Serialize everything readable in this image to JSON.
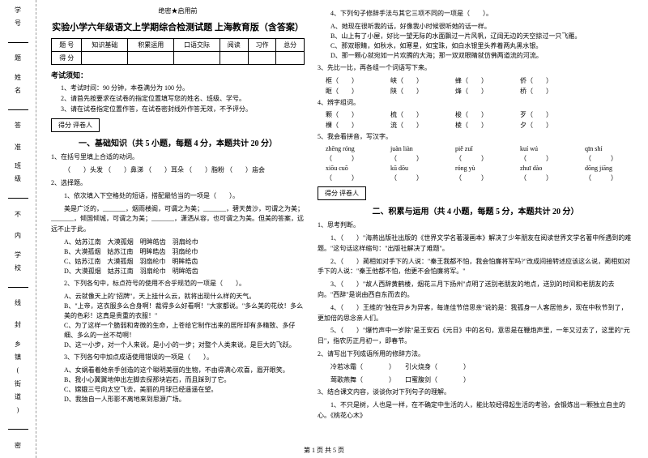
{
  "binding": {
    "items": [
      "学号",
      "姓名",
      "班级",
      "学校",
      "乡镇(街道)"
    ],
    "sideLabels": [
      "题",
      "答",
      "准",
      "不",
      "内",
      "线",
      "封",
      "密"
    ]
  },
  "headerMeta": "绝密★启用前",
  "title": "实验小学六年级语文上学期综合检测试题 上海教育版（含答案）",
  "scoreTable": {
    "headers": [
      "题 号",
      "知识基础",
      "积累运用",
      "口语交际",
      "阅读",
      "习作",
      "总分"
    ],
    "row": [
      "得 分",
      "",
      "",
      "",
      "",
      "",
      ""
    ]
  },
  "notice": {
    "title": "考试须知：",
    "items": [
      "1、考试时间：90 分钟，本卷满分为 100 分。",
      "2、请首先按要求在试卷的指定位置填写您的姓名、班级、学号。",
      "3、请在试卷指定位置作答，在试卷密封线外作答无效，不予评分。"
    ]
  },
  "sections": {
    "s1": {
      "scoreLabel": "得分  评卷人",
      "title": "一、基础知识（共 5 小题，每题 4 分，本题共计 20 分）"
    },
    "s2": {
      "scoreLabel": "得分  评卷人",
      "title": "二、积累与运用（共 4 小题，每题 5 分，本题共计 20 分）"
    }
  },
  "q1": {
    "stem": "1、在括号里填上合适的动词。",
    "blanks": [
      "（　　）头发",
      "（　　）鼻涕",
      "（　　）耳朵",
      "（　　）脂粉",
      "（　　）庙会"
    ]
  },
  "q2": {
    "stem": "2、选择题。",
    "sub1": "1、依次填入下空格处的短语，搭配最恰当的一项是（　　）。",
    "text": "美是广泛的，_______，烟雨楼阁，可谓之为美；_______，碧天黄沙，可谓之为美；_______，倾国倾城，可谓之为美；_______，潇洒从容，也可谓之为美。但美的答案，远远不止于此。",
    "opts": [
      "A、姑苏江南　大漠孤烟　明眸皓齿　羽扇纶巾",
      "B、大漠孤烟　姑苏江南　明眸皓齿　羽扇纶巾",
      "C、姑苏江南　大漠孤烟　羽扇纶巾　明眸皓齿",
      "D、大漠孤烟　姑苏江南　羽扇纶巾　明眸皓齿"
    ],
    "sub2": "2、下列各句中，标点符号的使用不合乎规范的一项是（　　）。",
    "opts2": [
      "A、云就像天上的\"招牌\"，天上挂什么云，就将出现什么样的天气。",
      "B、\"上帝，这衣服多么合身啊！裁得多么好看啊！\"大家都说。\"多么美的花纹！多么美的色彩！这真是贵重的衣服！\"",
      "C、为了这样一个脆弱和卑微的生命，上苍给它制作出来的居所却有多精致、多仔细、多么的一丝不苟啊！",
      "D、这一小步，对一个人来说，是小小的一步；对整个人类来说，是巨大的飞跃。"
    ],
    "sub3": "3、下列各句中加点成语使用错误的一项是（　　）。",
    "opts3": [
      "A、女娲看着她亲手创造的这个聪明美丽的生物，不由得满心欢喜，眉开眼笑。",
      "B、我小心翼翼地伸出左脚去探那块岩石，而且踩到了它。",
      "C、嫦娥三号向太空飞去，美丽的月球已经遥遥在望。",
      "D、我独自一人形影不离地来到思源广场。"
    ]
  },
  "q3_right": {
    "sub4": "4、下列句子修辞手法与其它三项不同的一项是（　　）。",
    "opts4": [
      "A、她现在很听我的话，好像我小时候很听她的话一样。",
      "B、山上有了小屋，好比一望无际的水面飘过一片风帆，辽阔无边的天空掠过一只飞雁。",
      "C、那双眼睛，如秋水，如寒星，如宝珠，如白水银里头养着两丸黑水银。",
      "D、那一颗心就宛如一片欢腾的大海；那一双双眼睛就仿佛两道流的河流。"
    ]
  },
  "q4": {
    "stem": "3、先比一比，再各组一个词语写下来。",
    "pairs": [
      [
        "框（　　）",
        "峡（　　）",
        "蜂（　　）",
        "侨（　　）"
      ],
      [
        "眶（　　）",
        "陕（　　）",
        "烽（　　）",
        "桥（　　）"
      ]
    ]
  },
  "q5": {
    "stem": "4、辨字组词。",
    "pairs": [
      [
        "颗（　　）",
        "梳（　　）",
        "梭（　　）",
        "歹（　　）"
      ],
      [
        "棵（　　）",
        "流（　　）",
        "棱（　　）",
        "夕（　　）"
      ]
    ]
  },
  "q6": {
    "stem": "5、我会看拼音，写汉字。",
    "pinyin": [
      [
        "zhēng róng",
        "juàn liàn",
        "piě zuǐ",
        "kuí wú",
        "qīn shí"
      ],
      [
        "（　　　）",
        "（　　　）",
        "（　　　）",
        "（　　　）",
        "（　　　）"
      ],
      [
        "xiōu  cuō",
        "kū dōu",
        "róng yù",
        "zhuī dào",
        "dōng jiāng"
      ],
      [
        "（　　　）",
        "（　　　）",
        "（　　　）",
        "（　　　）",
        "（　　　）"
      ]
    ]
  },
  "q7": {
    "stem": "1、思考判断。",
    "items": [
      "1、（　　）\"海燕出版社出版的《世界文学名著漫画本》解决了少年朋友在阅读世界文学名著中所遇到的难题。\"这句话这样缩句：\"出版社解决了难题\"。",
      "2、（　　）蔺相如对手下的人说：\"秦王我都不怕，我会怕廉将军吗?\"改成间接转述应该这么说，蔺相如对手下的人说：\"秦王他都不怕，他更不会怕廉将军。\"",
      "3、（　　）\"故人西辞黄鹤楼，烟花三月下扬州\"点明了送别老朋友的地点，送别的时间和老朋友的去向。\"西辞\"是说由西自东而去的。",
      "4、（　　）王维的\"独在异乡为异客，每逢佳节倍思亲\"说的是：我孤身一人客居他乡，现在中秋节到了，更加倍的思念亲人们。",
      "5、（　　）\"爆竹声中一岁除\"是王安石《元日》中的名句，意思是在鞭炮声里，一年又过去了，这里的\"元日\"，指农历正月初一，即春节。"
    ]
  },
  "q8": {
    "stem": "2、请写出下列成语所用的修辞方法。",
    "items": [
      "冷若冰霜（　　　　）　　引火烧身（　　　　）",
      "莺歌燕舞（　　　　）　　口蜜腹剑（　　　　）"
    ]
  },
  "q9": {
    "stem": "3、结合课文内容，谈谈你对下列句子的理解。",
    "text": "1、不只是树，人也是一样，在不确定中生活的人，能比较经得起生活的考验，会锻炼出一颗独立自主的心。《桃花心木》"
  },
  "footer": "第 1 页 共 5 页"
}
